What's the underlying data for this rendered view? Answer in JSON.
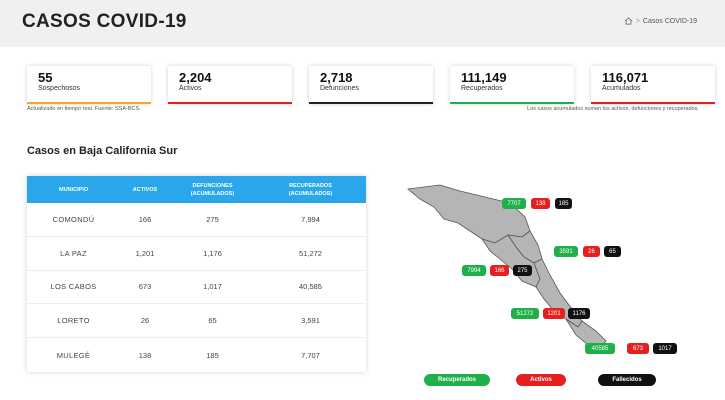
{
  "header": {
    "title": "CASOS COVID-19",
    "breadcrumb_home_icon": "home-icon",
    "breadcrumb_separator": ">",
    "breadcrumb_current": "Casos COVID-19"
  },
  "stats": [
    {
      "value": "55",
      "label": "Sospechosos",
      "color": "#f5a623"
    },
    {
      "value": "2,204",
      "label": "Activos",
      "color": "#e5201f"
    },
    {
      "value": "2,718",
      "label": "Defunciones",
      "color": "#222222"
    },
    {
      "value": "111,149",
      "label": "Recuperados",
      "color": "#20b04b"
    },
    {
      "value": "116,071",
      "label": "Acumulados",
      "color": "#e5201f"
    }
  ],
  "notes": {
    "left": "Actualizado en tiempo real. Fuente: SSA-BCS.",
    "right": "Los casos acumulados suman los activos, defunciones y recuperados."
  },
  "section_title": "Casos en Baja California Sur",
  "table": {
    "headers": [
      "MUNICIPIO",
      "ACTIVOS",
      "DEFUNCIONES\n(ACUMULADOS)",
      "RECUPERADOS\n(ACUMULADOS)"
    ],
    "header_lines": {
      "h1": "MUNICIPIO",
      "h2": "ACTIVOS",
      "h3a": "DEFUNCIONES",
      "h3b": "(ACUMULADOS)",
      "h4a": "RECUPERADOS",
      "h4b": "(ACUMULADOS)"
    },
    "rows": [
      {
        "municipio": "COMONDÚ",
        "activos": "166",
        "defunciones": "275",
        "recuperados": "7,994"
      },
      {
        "municipio": "LA PAZ",
        "activos": "1,201",
        "defunciones": "1,176",
        "recuperados": "51,272"
      },
      {
        "municipio": "LOS CABOS",
        "activos": "673",
        "defunciones": "1,017",
        "recuperados": "40,585"
      },
      {
        "municipio": "LORETO",
        "activos": "26",
        "defunciones": "65",
        "recuperados": "3,591"
      },
      {
        "municipio": "MULEGÉ",
        "activos": "138",
        "defunciones": "185",
        "recuperados": "7,707"
      }
    ]
  },
  "map": {
    "mulege": {
      "recuperados": "7707",
      "activos": "138",
      "fallecidos": "185"
    },
    "loreto": {
      "recuperados": "3591",
      "activos": "26",
      "fallecidos": "65"
    },
    "comondu": {
      "recuperados": "7994",
      "activos": "166",
      "fallecidos": "275"
    },
    "lapaz": {
      "recuperados": "51272",
      "activos": "1201",
      "fallecidos": "1176"
    },
    "loscabos": {
      "recuperados": "40585",
      "activos": "673",
      "fallecidos": "1017"
    },
    "colors": {
      "map_fill": "#b5b5b5",
      "map_stroke": "#555555",
      "recuperados": "#20b04b",
      "activos": "#e5201f",
      "fallecidos": "#111111"
    }
  },
  "legend": {
    "recuperados": "Recuperados",
    "activos": "Activos",
    "fallecidos": "Fallecidos"
  }
}
